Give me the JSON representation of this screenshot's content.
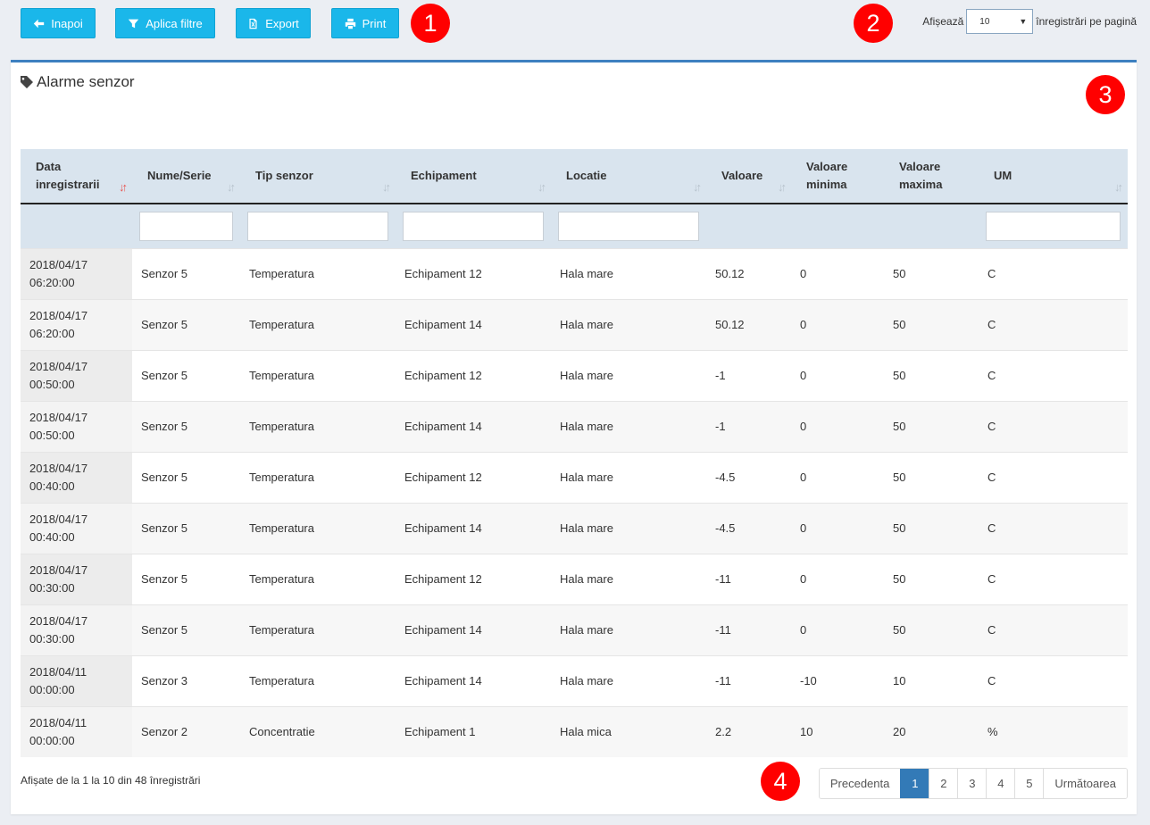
{
  "toolbar": {
    "back_label": "Inapoi",
    "filter_label": "Aplica filtre",
    "export_label": "Export",
    "print_label": "Print",
    "accent_color": "#1ab7ea"
  },
  "page_size": {
    "prefix": "Afișează",
    "value": "10",
    "suffix": "înregistrări pe pagină"
  },
  "markers": [
    "1",
    "2",
    "3",
    "4"
  ],
  "panel": {
    "title": "Alarme senzor",
    "icon": "tag-icon"
  },
  "table": {
    "headers": [
      {
        "line1": "Data",
        "line2": "inregistrarii",
        "sort": "desc-active"
      },
      {
        "line1": "Nume/Serie",
        "line2": "",
        "sort": "both"
      },
      {
        "line1": "Tip senzor",
        "line2": "",
        "sort": "both"
      },
      {
        "line1": "Echipament",
        "line2": "",
        "sort": "both"
      },
      {
        "line1": "Locatie",
        "line2": "",
        "sort": "both"
      },
      {
        "line1": "Valoare",
        "line2": "",
        "sort": "both"
      },
      {
        "line1": "Valoare",
        "line2": "minima",
        "sort": "none"
      },
      {
        "line1": "Valoare",
        "line2": "maxima",
        "sort": "none"
      },
      {
        "line1": "UM",
        "line2": "",
        "sort": "both"
      }
    ],
    "rows": [
      {
        "date": "2018/04/17",
        "time": "06:20:00",
        "name": "Senzor 5",
        "type": "Temperatura",
        "equip": "Echipament 12",
        "loc": "Hala mare",
        "val": "50.12",
        "min": "0",
        "max": "50",
        "um": "C"
      },
      {
        "date": "2018/04/17",
        "time": "06:20:00",
        "name": "Senzor 5",
        "type": "Temperatura",
        "equip": "Echipament 14",
        "loc": "Hala mare",
        "val": "50.12",
        "min": "0",
        "max": "50",
        "um": "C"
      },
      {
        "date": "2018/04/17",
        "time": "00:50:00",
        "name": "Senzor 5",
        "type": "Temperatura",
        "equip": "Echipament 12",
        "loc": "Hala mare",
        "val": "-1",
        "min": "0",
        "max": "50",
        "um": "C"
      },
      {
        "date": "2018/04/17",
        "time": "00:50:00",
        "name": "Senzor 5",
        "type": "Temperatura",
        "equip": "Echipament 14",
        "loc": "Hala mare",
        "val": "-1",
        "min": "0",
        "max": "50",
        "um": "C"
      },
      {
        "date": "2018/04/17",
        "time": "00:40:00",
        "name": "Senzor 5",
        "type": "Temperatura",
        "equip": "Echipament 12",
        "loc": "Hala mare",
        "val": "-4.5",
        "min": "0",
        "max": "50",
        "um": "C"
      },
      {
        "date": "2018/04/17",
        "time": "00:40:00",
        "name": "Senzor 5",
        "type": "Temperatura",
        "equip": "Echipament 14",
        "loc": "Hala mare",
        "val": "-4.5",
        "min": "0",
        "max": "50",
        "um": "C"
      },
      {
        "date": "2018/04/17",
        "time": "00:30:00",
        "name": "Senzor 5",
        "type": "Temperatura",
        "equip": "Echipament 12",
        "loc": "Hala mare",
        "val": "-11",
        "min": "0",
        "max": "50",
        "um": "C"
      },
      {
        "date": "2018/04/17",
        "time": "00:30:00",
        "name": "Senzor 5",
        "type": "Temperatura",
        "equip": "Echipament 14",
        "loc": "Hala mare",
        "val": "-11",
        "min": "0",
        "max": "50",
        "um": "C"
      },
      {
        "date": "2018/04/11",
        "time": "00:00:00",
        "name": "Senzor 3",
        "type": "Temperatura",
        "equip": "Echipament 14",
        "loc": "Hala mare",
        "val": "-11",
        "min": "-10",
        "max": "10",
        "um": "C"
      },
      {
        "date": "2018/04/11",
        "time": "00:00:00",
        "name": "Senzor 2",
        "type": "Concentratie",
        "equip": "Echipament 1",
        "loc": "Hala mica",
        "val": "2.2",
        "min": "10",
        "max": "20",
        "um": "%"
      }
    ]
  },
  "footer": {
    "info": "Afișate de la 1 la 10 din 48 înregistrări"
  },
  "pagination": {
    "prev": "Precedenta",
    "pages": [
      "1",
      "2",
      "3",
      "4",
      "5"
    ],
    "active_page": "1",
    "next": "Următoarea"
  }
}
